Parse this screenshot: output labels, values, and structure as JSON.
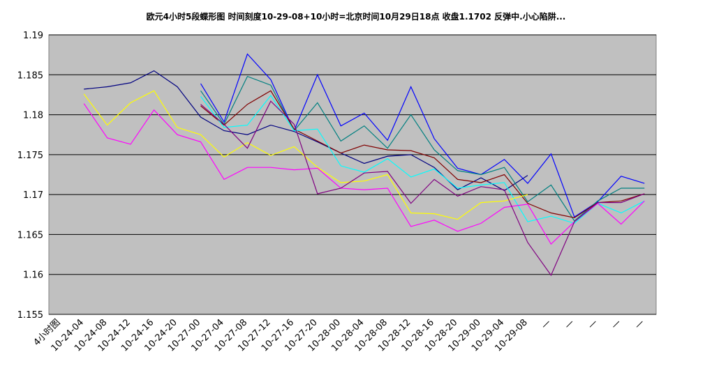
{
  "chart_data": {
    "type": "line",
    "title": "欧元4小时5段蝶形图  时间刻度10-29-08+10小时=北京时间10月29日18点  收盘1.1702  反弹中.小心陷阱...",
    "categories": [
      "4小时图",
      "10-24-04",
      "10-24-08",
      "10-24-12",
      "10-24-16",
      "10-24-20",
      "10-27-00",
      "10-27-04",
      "10-27-08",
      "10-27-12",
      "10-27-16",
      "10-27-20",
      "10-28-00",
      "10-28-04",
      "10-28-08",
      "10-28-12",
      "10-28-16",
      "10-28-20",
      "10-29-00",
      "10-29-04",
      "10-29-08",
      "—",
      "—",
      "—",
      "—",
      "—"
    ],
    "series": [
      {
        "color": "#000080",
        "values": [
          null,
          1.1832,
          1.1835,
          1.184,
          1.1855,
          1.1835,
          1.1797,
          1.178,
          1.1775,
          1.1787,
          1.1779,
          1.1766,
          1.1752,
          1.1739,
          1.1748,
          1.175,
          1.1734,
          1.1706,
          1.1721,
          1.1705,
          1.1724,
          null,
          null,
          null,
          null,
          null
        ]
      },
      {
        "color": "#0000ff",
        "values": [
          null,
          null,
          null,
          null,
          null,
          null,
          1.1839,
          1.1791,
          1.1876,
          1.1844,
          1.178,
          1.185,
          1.1786,
          1.1802,
          1.1768,
          1.1835,
          1.177,
          1.1733,
          1.1725,
          1.1744,
          1.1714,
          1.1751,
          1.1672,
          1.1691,
          1.1723,
          1.1714
        ]
      },
      {
        "color": "#008080",
        "values": [
          null,
          null,
          null,
          null,
          null,
          null,
          1.183,
          1.1788,
          1.1848,
          1.1837,
          1.178,
          1.1815,
          1.1767,
          1.1786,
          1.1758,
          1.18,
          1.1756,
          1.173,
          1.1725,
          1.1734,
          1.1691,
          1.1712,
          1.1667,
          1.1692,
          1.1708,
          1.1708
        ]
      },
      {
        "color": "#800000",
        "values": [
          null,
          null,
          null,
          null,
          null,
          null,
          1.1811,
          1.1787,
          1.1813,
          1.183,
          1.1782,
          1.1767,
          1.1752,
          1.1762,
          1.1756,
          1.1755,
          1.1746,
          1.1719,
          1.1715,
          1.1725,
          1.1689,
          1.1677,
          1.1671,
          1.169,
          1.1692,
          1.1701
        ]
      },
      {
        "color": "#00ffff",
        "values": [
          null,
          null,
          null,
          null,
          null,
          null,
          1.1823,
          1.1784,
          1.1787,
          1.1824,
          1.178,
          1.1782,
          1.1736,
          1.1728,
          1.1745,
          1.1722,
          1.1732,
          1.1708,
          1.1712,
          1.1715,
          1.1666,
          1.1673,
          1.1664,
          1.1689,
          1.1677,
          1.1692
        ]
      },
      {
        "color": "#ffff00",
        "values": [
          null,
          1.1826,
          1.1787,
          1.1815,
          1.183,
          1.1784,
          1.1775,
          1.1747,
          1.1765,
          1.1749,
          1.176,
          1.1734,
          1.1715,
          1.1717,
          1.1725,
          1.1677,
          1.1676,
          1.1669,
          1.169,
          1.1692,
          1.17,
          null,
          null,
          null,
          null,
          null
        ]
      },
      {
        "color": "#ff00ff",
        "values": [
          null,
          1.1814,
          1.1771,
          1.1763,
          1.1806,
          1.1775,
          1.1766,
          1.1719,
          1.1734,
          1.1734,
          1.1731,
          1.1733,
          1.1708,
          1.1706,
          1.1708,
          1.166,
          1.1668,
          1.1654,
          1.1664,
          1.1684,
          1.1688,
          1.1638,
          1.1666,
          1.1689,
          1.1663,
          1.1692
        ]
      },
      {
        "color": "#800080",
        "values": [
          null,
          null,
          null,
          null,
          null,
          null,
          1.1813,
          1.1788,
          1.1758,
          1.1817,
          1.1788,
          1.1701,
          1.1708,
          1.1727,
          1.1729,
          1.1689,
          1.1719,
          1.1698,
          1.171,
          1.1706,
          1.164,
          1.1599,
          1.1666,
          1.169,
          1.169,
          1.1701
        ]
      }
    ],
    "ylim": [
      1.155,
      1.19
    ],
    "yticks": [
      1.155,
      1.16,
      1.165,
      1.17,
      1.175,
      1.18,
      1.185,
      1.19
    ],
    "grid": true
  }
}
